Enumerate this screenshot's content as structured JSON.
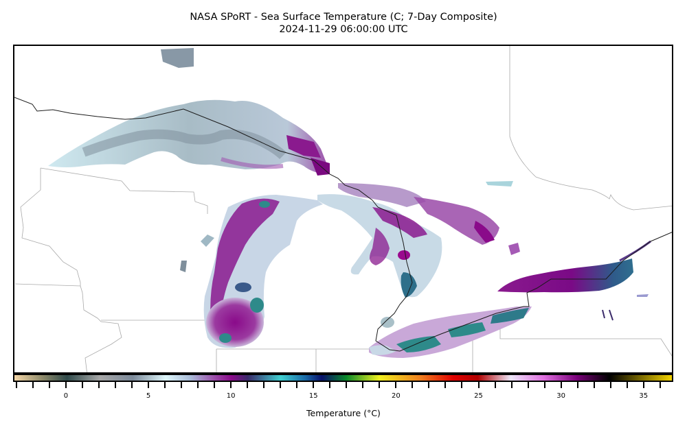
{
  "header": {
    "title": "NASA SPoRT - Sea Surface Temperature (C; 7-Day Composite)",
    "subtitle": "2024-11-29 06:00:00 UTC"
  },
  "colorbar": {
    "label": "Temperature (°C)",
    "range": [
      -3.2,
      36.8
    ],
    "tick_step": 1,
    "major_ticks": [
      0,
      5,
      10,
      15,
      20,
      25,
      30,
      35
    ],
    "major_labels": [
      "0",
      "5",
      "10",
      "15",
      "20",
      "25",
      "30",
      "35"
    ],
    "color_stops": [
      {
        "value": -3.2,
        "color": "#f5d7a8"
      },
      {
        "value": -1.5,
        "color": "#8e8a6a"
      },
      {
        "value": 0,
        "color": "#2f4a4a"
      },
      {
        "value": 2,
        "color": "#a6a6a6"
      },
      {
        "value": 4,
        "color": "#7c8a9a"
      },
      {
        "value": 6,
        "color": "#dff7fb"
      },
      {
        "value": 7.5,
        "color": "#a9bcd8"
      },
      {
        "value": 9,
        "color": "#9b4aa8"
      },
      {
        "value": 10,
        "color": "#8a0a8a"
      },
      {
        "value": 11,
        "color": "#3a2a6a"
      },
      {
        "value": 13,
        "color": "#40d0d0"
      },
      {
        "value": 14.5,
        "color": "#1a6aa8"
      },
      {
        "value": 15.5,
        "color": "#08106a"
      },
      {
        "value": 17,
        "color": "#0a8a2a"
      },
      {
        "value": 19,
        "color": "#f0f020"
      },
      {
        "value": 21.5,
        "color": "#f08020"
      },
      {
        "value": 23.5,
        "color": "#e00000"
      },
      {
        "value": 25,
        "color": "#b00000"
      },
      {
        "value": 27,
        "color": "#ece6f8"
      },
      {
        "value": 29,
        "color": "#e070e0"
      },
      {
        "value": 31,
        "color": "#7a007a"
      },
      {
        "value": 33,
        "color": "#000000"
      },
      {
        "value": 36.8,
        "color": "#f2d200"
      }
    ]
  },
  "map": {
    "region": "Great Lakes",
    "lakes": [
      {
        "name": "Lake Superior",
        "dominant_temp_c": "1–7",
        "note": "mostly gray/light blue with purple along eastern shore"
      },
      {
        "name": "Lake Michigan",
        "dominant_temp_c": "7–12",
        "note": "purple with teal patches in southern basin"
      },
      {
        "name": "Lake Huron",
        "dominant_temp_c": "7–11",
        "note": "light blue with purple bands"
      },
      {
        "name": "Georgian Bay",
        "dominant_temp_c": "8–10",
        "note": "purple"
      },
      {
        "name": "Lake Erie",
        "dominant_temp_c": "8–12",
        "note": "light purple with teal core"
      },
      {
        "name": "Lake Ontario",
        "dominant_temp_c": "9–12",
        "note": "purple west, teal/indigo east"
      }
    ]
  }
}
